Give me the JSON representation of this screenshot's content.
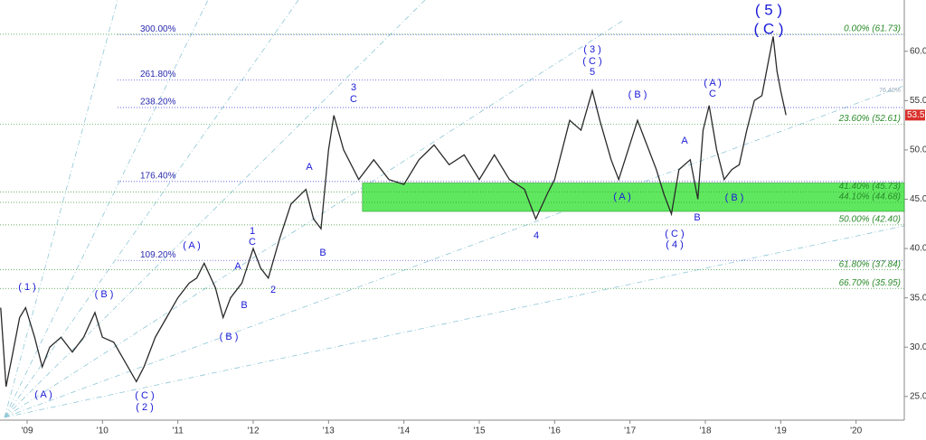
{
  "chart_data": {
    "type": "line",
    "x": [
      2008.65,
      2008.72,
      2008.8,
      2008.9,
      2008.98,
      2009.1,
      2009.2,
      2009.3,
      2009.45,
      2009.6,
      2009.75,
      2009.9,
      2010.0,
      2010.15,
      2010.3,
      2010.45,
      2010.55,
      2010.7,
      2010.85,
      2011.0,
      2011.15,
      2011.25,
      2011.35,
      2011.5,
      2011.6,
      2011.7,
      2011.85,
      2012.0,
      2012.1,
      2012.2,
      2012.35,
      2012.5,
      2012.7,
      2012.8,
      2012.9,
      2013.0,
      2013.07,
      2013.2,
      2013.4,
      2013.6,
      2013.8,
      2014.0,
      2014.2,
      2014.4,
      2014.6,
      2014.8,
      2015.0,
      2015.2,
      2015.4,
      2015.6,
      2015.75,
      2015.9,
      2016.0,
      2016.2,
      2016.35,
      2016.5,
      2016.6,
      2016.75,
      2016.85,
      2017.1,
      2017.2,
      2017.35,
      2017.45,
      2017.55,
      2017.65,
      2017.8,
      2017.9,
      2017.97,
      2018.05,
      2018.15,
      2018.25,
      2018.35,
      2018.45,
      2018.55,
      2018.65,
      2018.75,
      2018.85,
      2018.9,
      2018.95,
      2019.0,
      2019.07
    ],
    "values": [
      34,
      26,
      29,
      33,
      34,
      31,
      28,
      30,
      31,
      29.5,
      31,
      33.5,
      31,
      30.5,
      28.5,
      26.5,
      28,
      31,
      33,
      35,
      36.5,
      37,
      38.5,
      36,
      33,
      35,
      36.5,
      40,
      38,
      37,
      41,
      44.5,
      46,
      43,
      42,
      50,
      53.5,
      50,
      47,
      49,
      47,
      46.5,
      49,
      50.5,
      48.5,
      49.5,
      47,
      49.5,
      47,
      46,
      43,
      45.5,
      47,
      53,
      52,
      56,
      53,
      49,
      47,
      53,
      51,
      48,
      45.5,
      43.5,
      48,
      49,
      45,
      52,
      54.5,
      50,
      47,
      48,
      48.5,
      52,
      55,
      55.5,
      59.5,
      61.5,
      58,
      56,
      53.53
    ],
    "color": "#2a2a2a",
    "xlim": [
      2008.64,
      2020.64
    ],
    "ylim": [
      22.6,
      65.2
    ],
    "xticks": [
      {
        "value": 2009,
        "label": "'09"
      },
      {
        "value": 2010,
        "label": "'10"
      },
      {
        "value": 2011,
        "label": "'11"
      },
      {
        "value": 2012,
        "label": "'12"
      },
      {
        "value": 2013,
        "label": "'13"
      },
      {
        "value": 2014,
        "label": "'14"
      },
      {
        "value": 2015,
        "label": "'15"
      },
      {
        "value": 2016,
        "label": "'16"
      },
      {
        "value": 2017,
        "label": "'17"
      },
      {
        "value": 2018,
        "label": "'18"
      },
      {
        "value": 2019,
        "label": "'19"
      },
      {
        "value": 2020,
        "label": "'20"
      }
    ],
    "yticks": [
      {
        "value": 25,
        "label": "25.00"
      },
      {
        "value": 30,
        "label": "30.00"
      },
      {
        "value": 35,
        "label": "35.00"
      },
      {
        "value": 40,
        "label": "40.00"
      },
      {
        "value": 45,
        "label": "45.00"
      },
      {
        "value": 50,
        "label": "50.00"
      },
      {
        "value": 55,
        "label": "55.00"
      },
      {
        "value": 60,
        "label": "60.00"
      }
    ],
    "fib_levels": [
      {
        "label": "0.00% (61.73)",
        "value": 61.73
      },
      {
        "label": "23.60% (52.61)",
        "value": 52.61
      },
      {
        "label": "41.40% (45.73)",
        "value": 45.73
      },
      {
        "label": "44.10% (44.68)",
        "value": 44.68
      },
      {
        "label": "50.00% (42.40)",
        "value": 42.4
      },
      {
        "label": "61.80% (37.84)",
        "value": 37.84
      },
      {
        "label": "66.70% (35.95)",
        "value": 35.95
      }
    ],
    "extension_levels": [
      {
        "label": "300.00%",
        "value": 61.7
      },
      {
        "label": "261.80%",
        "value": 57.1
      },
      {
        "label": "238.20%",
        "value": 54.3
      },
      {
        "label": "176.40%",
        "value": 46.8
      },
      {
        "label": "109.20%",
        "value": 38.8
      }
    ],
    "annotations": [
      "( 1 )",
      "( A )",
      "( B )",
      "( C )",
      "( 2 )",
      "( A )",
      "( B )",
      "A",
      "B",
      "1",
      "C",
      "2",
      "A",
      "B",
      "3",
      "C",
      "4",
      "( 3 )",
      "( C )",
      "5",
      "( A )",
      "( B )",
      "A",
      "( C )",
      "( 4 )",
      "B",
      "( A )",
      "C",
      "( B )",
      "( 5 )",
      "( C )",
      "76.40%"
    ]
  }
}
